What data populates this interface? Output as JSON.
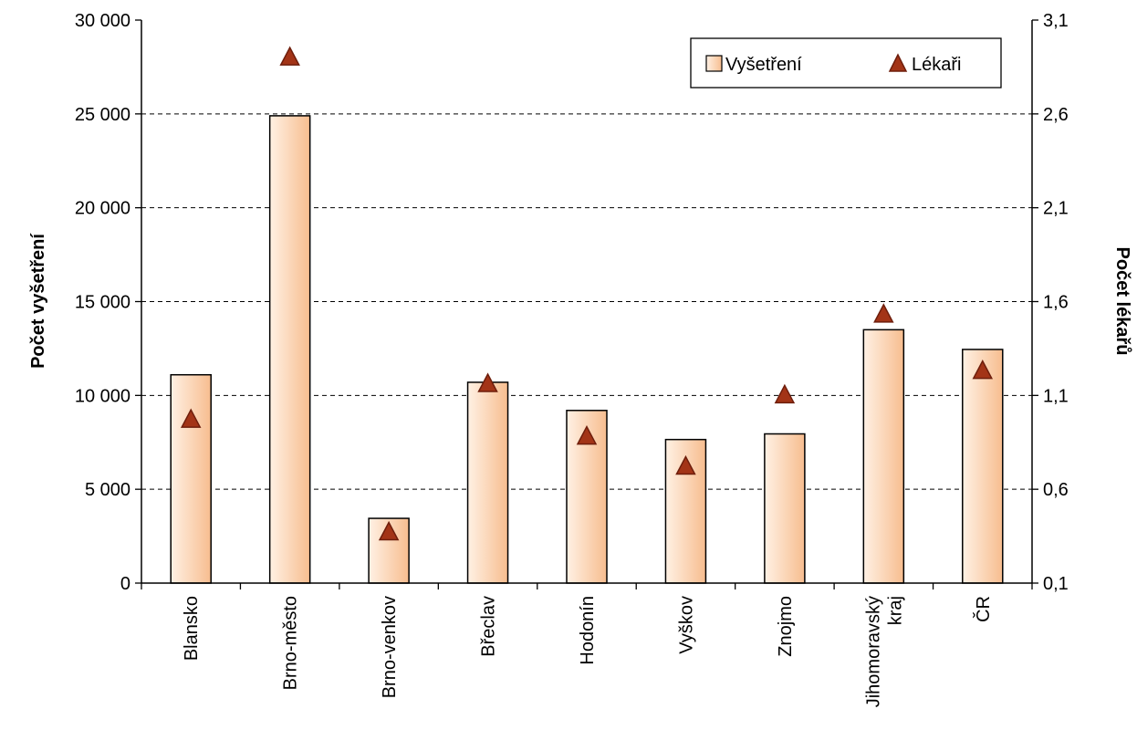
{
  "chart_data": {
    "type": "bar",
    "title": "",
    "categories": [
      [
        "Blansko"
      ],
      [
        "Brno-město"
      ],
      [
        "Brno-venkov"
      ],
      [
        "Břeclav"
      ],
      [
        "Hodonín"
      ],
      [
        "Vyškov"
      ],
      [
        "Znojmo"
      ],
      [
        "Jihomoravský",
        "kraj"
      ],
      [
        "ČR"
      ]
    ],
    "series": [
      {
        "name": "Vyšetření",
        "type": "bar",
        "axis": "left",
        "values": [
          11100,
          24900,
          3450,
          10700,
          9200,
          7650,
          7950,
          13500,
          12450
        ]
      },
      {
        "name": "Lékaři",
        "type": "marker",
        "marker": "triangle",
        "axis": "right",
        "values": [
          0.97,
          2.9,
          0.37,
          1.16,
          0.88,
          0.72,
          1.1,
          1.53,
          1.23
        ]
      }
    ],
    "y_left": {
      "label": "Počet vyšetření",
      "range": [
        0,
        30000
      ],
      "ticks": [
        "0",
        "5 000",
        "10 000",
        "15 000",
        "20 000",
        "25 000",
        "30 000"
      ]
    },
    "y_right": {
      "label": "Počet lékařů",
      "range": [
        0.1,
        3.1
      ],
      "ticks": [
        "0,1",
        "0,6",
        "1,1",
        "1,6",
        "2,1",
        "2,6",
        "3,1"
      ]
    },
    "grid": "horizontal-dashed",
    "legend_position": "top-right",
    "colors": {
      "bar_light": "#fff1e4",
      "bar_dark": "#f7bd8f",
      "bar_stroke": "#000000",
      "marker_fill": "#a33417",
      "marker_stroke": "#6e1e0c"
    }
  }
}
